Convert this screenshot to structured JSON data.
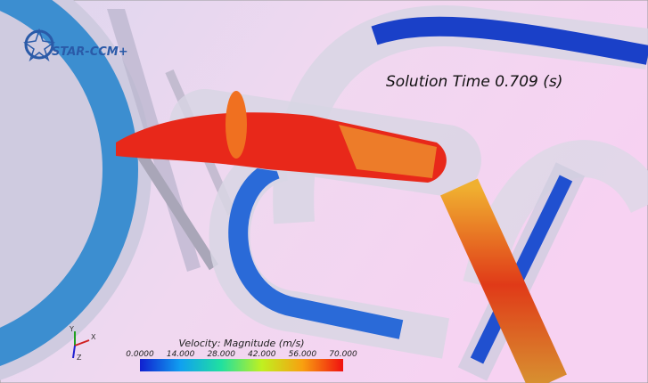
{
  "logo": {
    "text": "STAR-CCM+"
  },
  "annotation": {
    "solution_time": "Solution Time 0.709 (s)"
  },
  "legend": {
    "title": "Velocity: Magnitude (m/s)",
    "ticks": [
      "0.0000",
      "14.000",
      "28.000",
      "42.000",
      "56.000",
      "70.000"
    ]
  },
  "axes_triad": {
    "y": "Y",
    "x": "X",
    "z": "Z"
  }
}
